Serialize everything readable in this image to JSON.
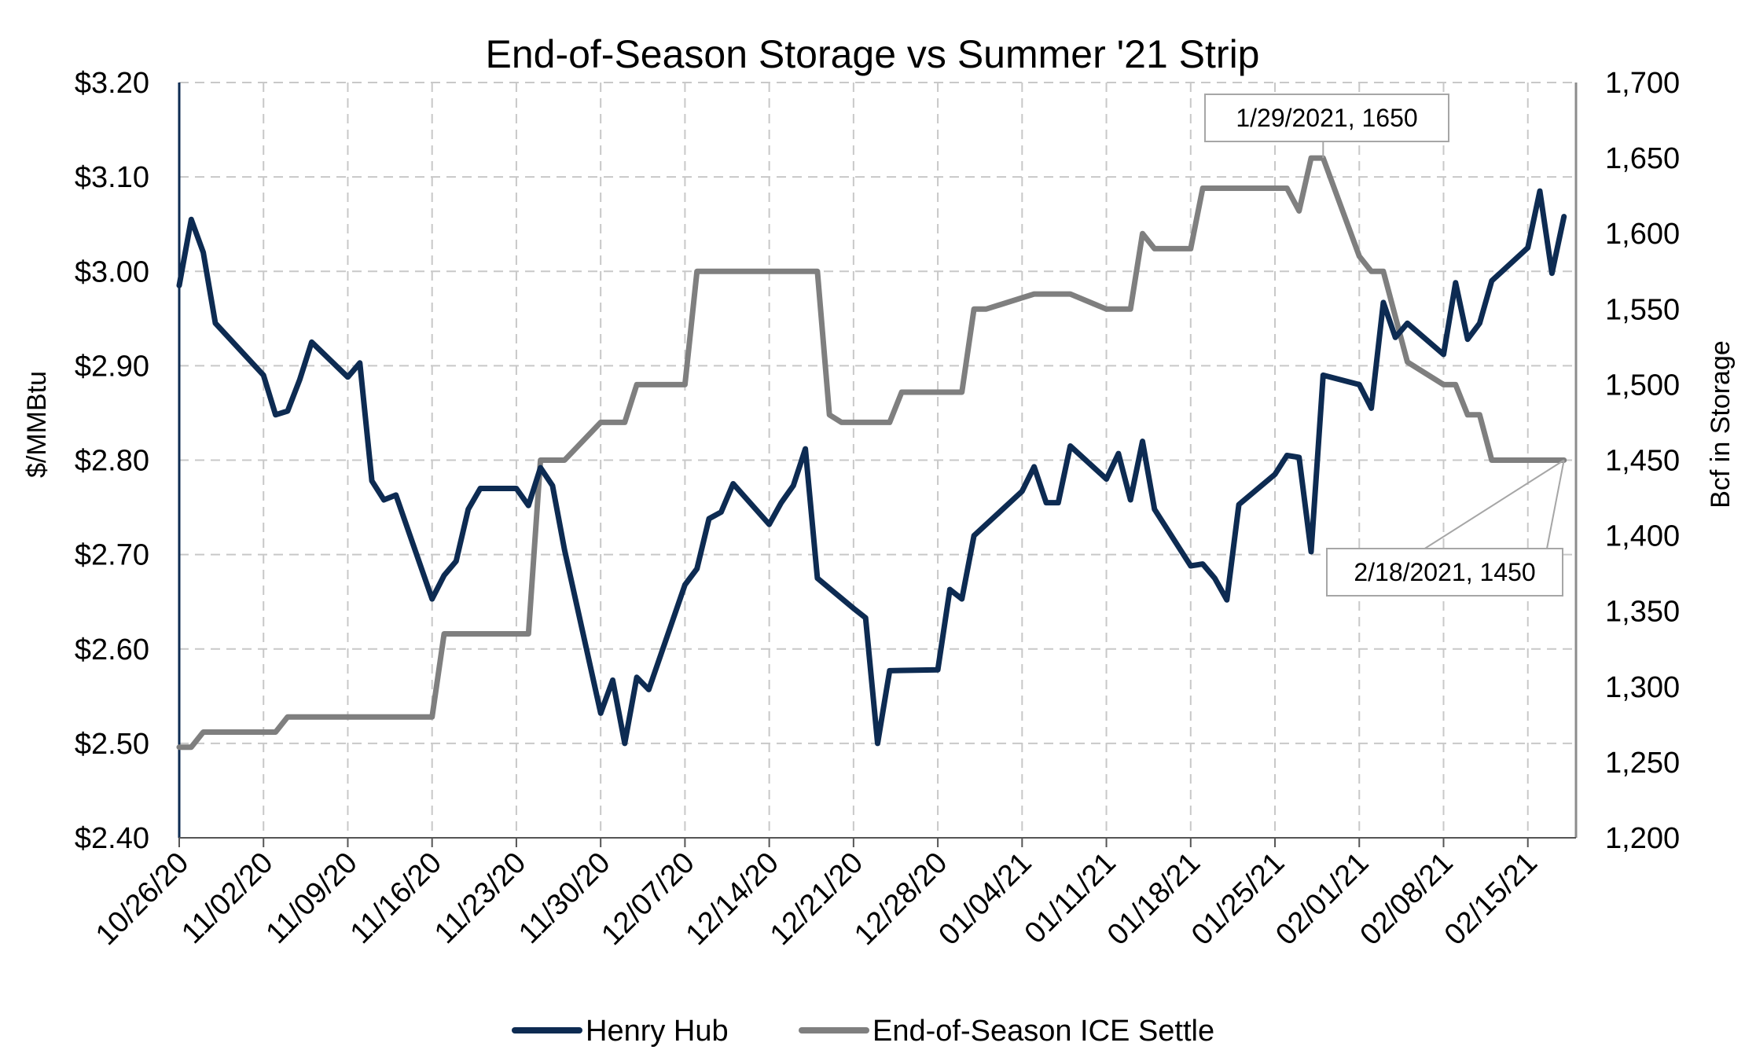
{
  "chart_data": {
    "type": "line",
    "title": "End-of-Season Storage vs Summer '21 Strip",
    "y_left_label": "$/MMBtu",
    "y_right_label": "Bcf in Storage",
    "y_left_range": [
      2.4,
      3.2
    ],
    "y_right_range": [
      1200,
      1700
    ],
    "y_left_ticks": [
      "$2.40",
      "$2.50",
      "$2.60",
      "$2.70",
      "$2.80",
      "$2.90",
      "$3.00",
      "$3.10",
      "$3.20"
    ],
    "y_right_ticks": [
      "1,200",
      "1,250",
      "1,300",
      "1,350",
      "1,400",
      "1,450",
      "1,500",
      "1,550",
      "1,600",
      "1,650",
      "1,700"
    ],
    "x_range": [
      "2020-10-26",
      "2021-02-19"
    ],
    "x_ticks": [
      {
        "date": "2020-10-26",
        "label": "10/26/20"
      },
      {
        "date": "2020-11-02",
        "label": "11/02/20"
      },
      {
        "date": "2020-11-09",
        "label": "11/09/20"
      },
      {
        "date": "2020-11-16",
        "label": "11/16/20"
      },
      {
        "date": "2020-11-23",
        "label": "11/23/20"
      },
      {
        "date": "2020-11-30",
        "label": "11/30/20"
      },
      {
        "date": "2020-12-07",
        "label": "12/07/20"
      },
      {
        "date": "2020-12-14",
        "label": "12/14/20"
      },
      {
        "date": "2020-12-21",
        "label": "12/21/20"
      },
      {
        "date": "2020-12-28",
        "label": "12/28/20"
      },
      {
        "date": "2021-01-04",
        "label": "01/04/21"
      },
      {
        "date": "2021-01-11",
        "label": "01/11/21"
      },
      {
        "date": "2021-01-18",
        "label": "01/18/21"
      },
      {
        "date": "2021-01-25",
        "label": "01/25/21"
      },
      {
        "date": "2021-02-01",
        "label": "02/01/21"
      },
      {
        "date": "2021-02-08",
        "label": "02/08/21"
      },
      {
        "date": "2021-02-15",
        "label": "02/15/21"
      }
    ],
    "grid": true,
    "legend_position": "bottom",
    "series": [
      {
        "name": "Henry Hub",
        "axis": "left",
        "color": "#0d2b52",
        "points": [
          [
            "2020-10-26",
            2.985
          ],
          [
            "2020-10-27",
            3.055
          ],
          [
            "2020-10-28",
            3.02
          ],
          [
            "2020-10-29",
            2.945
          ],
          [
            "2020-11-02",
            2.89
          ],
          [
            "2020-11-03",
            2.848
          ],
          [
            "2020-11-04",
            2.852
          ],
          [
            "2020-11-05",
            2.885
          ],
          [
            "2020-11-06",
            2.925
          ],
          [
            "2020-11-09",
            2.888
          ],
          [
            "2020-11-10",
            2.903
          ],
          [
            "2020-11-11",
            2.778
          ],
          [
            "2020-11-12",
            2.758
          ],
          [
            "2020-11-13",
            2.763
          ],
          [
            "2020-11-16",
            2.653
          ],
          [
            "2020-11-17",
            2.678
          ],
          [
            "2020-11-18",
            2.693
          ],
          [
            "2020-11-19",
            2.748
          ],
          [
            "2020-11-20",
            2.77
          ],
          [
            "2020-11-23",
            2.77
          ],
          [
            "2020-11-24",
            2.752
          ],
          [
            "2020-11-25",
            2.792
          ],
          [
            "2020-11-26",
            2.773
          ],
          [
            "2020-11-27",
            2.705
          ],
          [
            "2020-11-30",
            2.532
          ],
          [
            "2020-12-01",
            2.567
          ],
          [
            "2020-12-02",
            2.5
          ],
          [
            "2020-12-03",
            2.57
          ],
          [
            "2020-12-04",
            2.557
          ],
          [
            "2020-12-07",
            2.668
          ],
          [
            "2020-12-08",
            2.685
          ],
          [
            "2020-12-09",
            2.738
          ],
          [
            "2020-12-10",
            2.745
          ],
          [
            "2020-12-11",
            2.775
          ],
          [
            "2020-12-14",
            2.732
          ],
          [
            "2020-12-15",
            2.755
          ],
          [
            "2020-12-16",
            2.773
          ],
          [
            "2020-12-17",
            2.812
          ],
          [
            "2020-12-18",
            2.675
          ],
          [
            "2020-12-21",
            2.643
          ],
          [
            "2020-12-22",
            2.633
          ],
          [
            "2020-12-23",
            2.5
          ],
          [
            "2020-12-24",
            2.577
          ],
          [
            "2020-12-28",
            2.578
          ],
          [
            "2020-12-29",
            2.663
          ],
          [
            "2020-12-30",
            2.653
          ],
          [
            "2020-12-31",
            2.72
          ],
          [
            "2021-01-04",
            2.767
          ],
          [
            "2021-01-05",
            2.793
          ],
          [
            "2021-01-06",
            2.755
          ],
          [
            "2021-01-07",
            2.755
          ],
          [
            "2021-01-08",
            2.815
          ],
          [
            "2021-01-11",
            2.78
          ],
          [
            "2021-01-12",
            2.807
          ],
          [
            "2021-01-13",
            2.758
          ],
          [
            "2021-01-14",
            2.82
          ],
          [
            "2021-01-15",
            2.748
          ],
          [
            "2021-01-18",
            2.688
          ],
          [
            "2021-01-19",
            2.69
          ],
          [
            "2021-01-20",
            2.675
          ],
          [
            "2021-01-21",
            2.652
          ],
          [
            "2021-01-22",
            2.753
          ],
          [
            "2021-01-25",
            2.785
          ],
          [
            "2021-01-26",
            2.805
          ],
          [
            "2021-01-27",
            2.803
          ],
          [
            "2021-01-28",
            2.703
          ],
          [
            "2021-01-29",
            2.89
          ],
          [
            "2021-02-01",
            2.88
          ],
          [
            "2021-02-02",
            2.855
          ],
          [
            "2021-02-03",
            2.967
          ],
          [
            "2021-02-04",
            2.93
          ],
          [
            "2021-02-05",
            2.945
          ],
          [
            "2021-02-08",
            2.912
          ],
          [
            "2021-02-09",
            2.988
          ],
          [
            "2021-02-10",
            2.928
          ],
          [
            "2021-02-11",
            2.945
          ],
          [
            "2021-02-12",
            2.99
          ],
          [
            "2021-02-15",
            3.025
          ],
          [
            "2021-02-16",
            3.085
          ],
          [
            "2021-02-17",
            2.998
          ],
          [
            "2021-02-18",
            3.058
          ]
        ]
      },
      {
        "name": "End-of-Season ICE Settle",
        "axis": "right",
        "color": "#7f7f7f",
        "points": [
          [
            "2020-10-26",
            1260
          ],
          [
            "2020-10-27",
            1260
          ],
          [
            "2020-10-28",
            1270
          ],
          [
            "2020-11-02",
            1270
          ],
          [
            "2020-11-03",
            1270
          ],
          [
            "2020-11-04",
            1280
          ],
          [
            "2020-11-16",
            1280
          ],
          [
            "2020-11-17",
            1335
          ],
          [
            "2020-11-24",
            1335
          ],
          [
            "2020-11-25",
            1450
          ],
          [
            "2020-11-27",
            1450
          ],
          [
            "2020-11-30",
            1475
          ],
          [
            "2020-12-01",
            1475
          ],
          [
            "2020-12-02",
            1475
          ],
          [
            "2020-12-03",
            1500
          ],
          [
            "2020-12-07",
            1500
          ],
          [
            "2020-12-08",
            1575
          ],
          [
            "2020-12-15",
            1575
          ],
          [
            "2020-12-18",
            1575
          ],
          [
            "2020-12-19",
            1480
          ],
          [
            "2020-12-20",
            1475
          ],
          [
            "2020-12-24",
            1475
          ],
          [
            "2020-12-25",
            1495
          ],
          [
            "2020-12-30",
            1495
          ],
          [
            "2020-12-31",
            1550
          ],
          [
            "2021-01-01",
            1550
          ],
          [
            "2021-01-05",
            1560
          ],
          [
            "2021-01-08",
            1560
          ],
          [
            "2021-01-11",
            1550
          ],
          [
            "2021-01-13",
            1550
          ],
          [
            "2021-01-14",
            1600
          ],
          [
            "2021-01-15",
            1590
          ],
          [
            "2021-01-18",
            1590
          ],
          [
            "2021-01-19",
            1630
          ],
          [
            "2021-01-26",
            1630
          ],
          [
            "2021-01-27",
            1615
          ],
          [
            "2021-01-28",
            1650
          ],
          [
            "2021-01-29",
            1650
          ],
          [
            "2021-02-01",
            1585
          ],
          [
            "2021-02-02",
            1575
          ],
          [
            "2021-02-03",
            1575
          ],
          [
            "2021-02-05",
            1515
          ],
          [
            "2021-02-08",
            1500
          ],
          [
            "2021-02-09",
            1500
          ],
          [
            "2021-02-10",
            1480
          ],
          [
            "2021-02-11",
            1480
          ],
          [
            "2021-02-12",
            1450
          ],
          [
            "2021-02-18",
            1450
          ]
        ]
      }
    ],
    "annotations": [
      {
        "text": "1/29/2021, 1650",
        "date": "2021-01-29",
        "value": 1650,
        "axis": "right"
      },
      {
        "text": "2/18/2021, 1450",
        "date": "2021-02-18",
        "value": 1450,
        "axis": "right"
      }
    ]
  }
}
